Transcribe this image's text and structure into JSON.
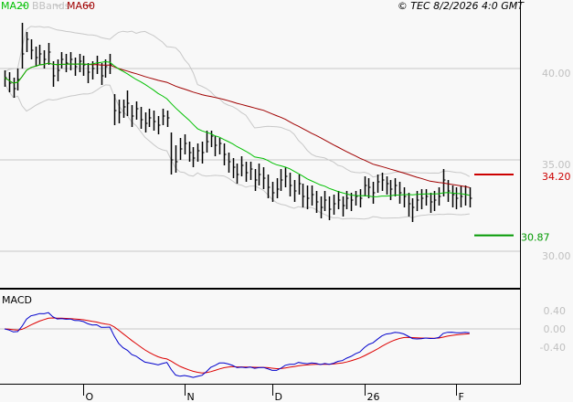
{
  "legend": [
    {
      "label": "MA20",
      "color": "#00c000"
    },
    {
      "label": "BBands",
      "color": "#c0c0c0"
    },
    {
      "label": "MA60",
      "color": "#a00000"
    }
  ],
  "copyright": "© TEC 8/2/2026 4:0 GMT",
  "chart_data": {
    "type": "ohlc",
    "price_axis": {
      "ticks": [
        40,
        35,
        30
      ],
      "tick_labels": [
        "40.00",
        "35.00",
        "30.00"
      ],
      "ylim": [
        29.2,
        44.8
      ],
      "grid": true
    },
    "levels": [
      {
        "value": 34.2,
        "label": "34.20",
        "color": "#cc0000"
      },
      {
        "value": 30.87,
        "label": "30.87",
        "color": "#009900"
      }
    ],
    "x_ticks": [
      {
        "label": "O",
        "index": 18
      },
      {
        "label": "N",
        "index": 41
      },
      {
        "label": "D",
        "index": 61
      },
      {
        "label": "26",
        "index": 82
      },
      {
        "label": "F",
        "index": 103
      }
    ],
    "close": [
      39.5,
      39.2,
      38.9,
      39.4,
      40.8,
      41.6,
      41.0,
      40.6,
      40.8,
      40.5,
      40.9,
      39.6,
      39.9,
      40.5,
      40.3,
      40.5,
      40.1,
      40.4,
      40.2,
      39.8,
      40.0,
      40.3,
      39.6,
      40.1,
      40.2,
      37.7,
      37.6,
      37.9,
      38.1,
      37.4,
      37.8,
      37.2,
      37.0,
      37.3,
      37.1,
      36.9,
      37.4,
      37.3,
      35.0,
      34.9,
      35.6,
      35.9,
      35.4,
      35.1,
      35.5,
      35.4,
      36.0,
      36.3,
      35.8,
      35.9,
      35.3,
      34.9,
      34.6,
      34.2,
      34.7,
      34.3,
      34.5,
      33.9,
      34.2,
      34.0,
      33.5,
      33.2,
      33.4,
      33.9,
      34.1,
      33.6,
      33.3,
      33.7,
      33.0,
      32.9,
      33.1,
      32.7,
      32.4,
      32.8,
      32.3,
      32.6,
      32.8,
      32.5,
      32.9,
      32.8,
      33.0,
      32.9,
      33.6,
      33.5,
      33.2,
      33.8,
      33.9,
      33.7,
      33.4,
      33.6,
      33.2,
      33.0,
      32.6,
      32.4,
      32.8,
      32.9,
      33.0,
      32.7,
      32.8,
      33.0,
      33.9,
      33.3,
      33.1,
      32.9,
      33.0,
      33.1,
      32.9
    ],
    "high": [
      39.9,
      39.8,
      39.5,
      40.0,
      42.5,
      42.0,
      41.6,
      41.2,
      41.3,
      41.0,
      41.4,
      40.4,
      40.5,
      40.9,
      40.8,
      40.9,
      40.6,
      40.8,
      40.7,
      40.3,
      40.4,
      40.7,
      40.3,
      40.5,
      40.8,
      38.6,
      38.3,
      38.3,
      38.8,
      38.0,
      38.2,
      37.9,
      37.6,
      37.8,
      37.7,
      37.4,
      37.8,
      37.7,
      36.5,
      35.8,
      36.2,
      36.4,
      36.0,
      35.7,
      35.9,
      36.0,
      36.6,
      36.6,
      36.3,
      36.2,
      35.9,
      35.4,
      35.1,
      34.8,
      35.2,
      34.9,
      34.9,
      34.5,
      34.8,
      34.6,
      34.2,
      33.8,
      34.0,
      34.5,
      34.6,
      34.3,
      33.9,
      34.2,
      33.7,
      33.6,
      33.6,
      33.3,
      33.0,
      33.3,
      33.0,
      33.1,
      33.3,
      33.0,
      33.3,
      33.2,
      33.3,
      33.4,
      34.1,
      34.0,
      33.8,
      34.2,
      34.3,
      34.1,
      33.9,
      34.0,
      33.8,
      33.5,
      33.2,
      32.9,
      33.3,
      33.4,
      33.4,
      33.2,
      33.3,
      33.5,
      34.5,
      33.9,
      33.6,
      33.5,
      33.6,
      33.6,
      33.5
    ],
    "low": [
      39.0,
      38.7,
      38.4,
      38.8,
      40.0,
      40.9,
      40.5,
      40.1,
      40.2,
      40.0,
      40.2,
      39.0,
      39.3,
      40.0,
      39.8,
      39.9,
      39.6,
      39.8,
      39.6,
      39.2,
      39.4,
      39.7,
      39.1,
      39.5,
      39.7,
      36.9,
      37.0,
      37.3,
      37.4,
      36.8,
      37.2,
      36.7,
      36.5,
      36.8,
      36.6,
      36.4,
      36.9,
      36.8,
      34.2,
      34.3,
      35.0,
      35.3,
      34.9,
      34.6,
      34.9,
      34.8,
      35.4,
      35.7,
      35.2,
      35.3,
      34.7,
      34.3,
      34.0,
      33.7,
      34.1,
      33.8,
      33.9,
      33.3,
      33.6,
      33.4,
      32.9,
      32.7,
      32.9,
      33.3,
      33.5,
      33.0,
      32.7,
      33.1,
      32.4,
      32.3,
      32.5,
      32.1,
      31.8,
      32.2,
      31.7,
      32.0,
      32.3,
      31.9,
      32.3,
      32.2,
      32.5,
      32.4,
      33.0,
      32.9,
      32.6,
      33.2,
      33.3,
      33.1,
      32.8,
      33.0,
      32.6,
      32.4,
      31.9,
      31.6,
      32.2,
      32.3,
      32.5,
      32.1,
      32.2,
      32.5,
      33.0,
      32.7,
      32.4,
      32.3,
      32.4,
      32.5,
      32.4
    ],
    "macd_panel": {
      "title": "MACD",
      "ticks": [
        0.4,
        0,
        -0.4
      ],
      "tick_labels": [
        "0.40",
        "0.00",
        "-0.40"
      ],
      "macd_color": "#0000cc",
      "signal_color": "#dd0000"
    }
  }
}
